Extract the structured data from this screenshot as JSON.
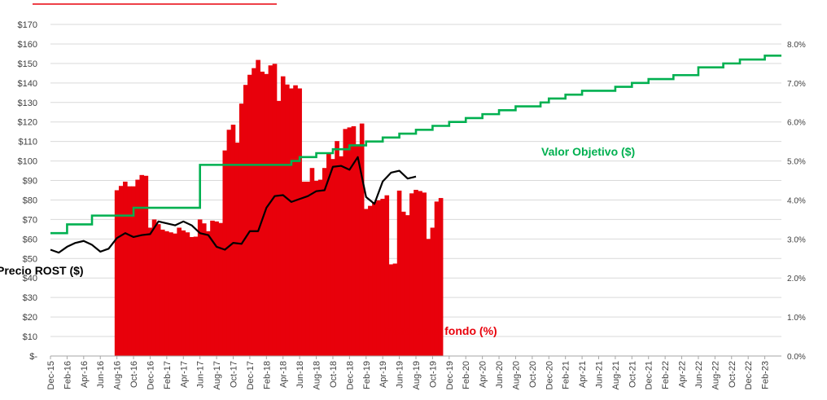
{
  "chart_data": {
    "type": "combo",
    "left_axis": {
      "ticks": [
        "$-",
        "$10",
        "$20",
        "$30",
        "$40",
        "$50",
        "$60",
        "$70",
        "$80",
        "$90",
        "$100",
        "$110",
        "$120",
        "$130",
        "$140",
        "$150",
        "$160",
        "$170"
      ],
      "ylim": [
        0,
        170
      ]
    },
    "right_axis": {
      "ticks": [
        "0.0%",
        "1.0%",
        "2.0%",
        "3.0%",
        "4.0%",
        "5.0%",
        "6.0%",
        "7.0%",
        "8.0%"
      ],
      "ylim": [
        0,
        8.5
      ]
    },
    "x_tick_labels": [
      "Dec-15",
      "Feb-16",
      "Apr-16",
      "Jun-16",
      "Aug-16",
      "Oct-16",
      "Dec-16",
      "Feb-17",
      "Apr-17",
      "Jun-17",
      "Aug-17",
      "Oct-17",
      "Dec-17",
      "Feb-18",
      "Apr-18",
      "Jun-18",
      "Aug-18",
      "Oct-18",
      "Dec-18",
      "Feb-19",
      "Apr-19",
      "Jun-19",
      "Aug-19",
      "Oct-19",
      "Dec-19",
      "Feb-20",
      "Apr-20",
      "Jun-20",
      "Aug-20",
      "Oct-20",
      "Dec-20",
      "Feb-21",
      "Apr-21",
      "Jun-21",
      "Aug-21",
      "Oct-21",
      "Dec-21",
      "Feb-22",
      "Apr-22",
      "Jun-22",
      "Aug-22",
      "Oct-22",
      "Dec-22",
      "Feb-23"
    ],
    "grid": true,
    "series": [
      {
        "name": "Peso en el fondo (%)",
        "kind": "bar",
        "axis": "right",
        "color": "#e8000b",
        "start_month": 8,
        "values": [
          4.25,
          4.36,
          4.47,
          4.35,
          4.35,
          4.52,
          4.64,
          4.62,
          3.29,
          3.5,
          3.38,
          3.24,
          3.2,
          3.17,
          3.14,
          3.29,
          3.22,
          3.17,
          3.05,
          3.06,
          3.5,
          3.4,
          3.2,
          3.47,
          3.45,
          3.41,
          5.27,
          5.8,
          5.93,
          5.47,
          6.47,
          6.95,
          7.21,
          7.38,
          7.59,
          7.29,
          7.23,
          7.45,
          7.49,
          6.54,
          7.17,
          6.96,
          6.86,
          6.94,
          6.86,
          4.47,
          4.47,
          4.82,
          4.49,
          4.52,
          4.82,
          5.18,
          5.05,
          5.51,
          5.12,
          5.82,
          5.86,
          5.89,
          5.43,
          5.96,
          3.77,
          3.85,
          3.95,
          3.99,
          4.03,
          4.12,
          2.35,
          2.37,
          4.24,
          3.7,
          3.61,
          4.17,
          4.26,
          4.23,
          4.19,
          3.0,
          3.29,
          3.96,
          4.05
        ]
      },
      {
        "name": "Precio ROST ($)",
        "kind": "line",
        "axis": "left",
        "color": "#000000",
        "values": [
          54.5,
          53,
          56,
          58,
          59,
          57,
          53.5,
          55,
          60.5,
          63,
          61,
          62,
          62.5,
          69,
          68,
          67,
          69,
          67,
          63,
          62,
          56,
          54.5,
          58,
          57.5,
          64,
          64,
          76,
          82,
          82.5,
          79,
          80.5,
          82,
          84.5,
          85,
          97,
          97.5,
          95.5,
          102,
          81.5,
          78,
          89.5,
          94,
          95,
          91,
          92
        ]
      },
      {
        "name": "Valor Objetivo ($)",
        "kind": "step",
        "axis": "left",
        "color": "#00b050",
        "values": [
          63,
          63,
          67.5,
          67.5,
          67.5,
          72,
          72,
          72,
          72,
          72,
          76,
          76,
          76,
          76,
          76,
          76,
          76,
          76,
          98,
          98,
          98,
          98,
          98,
          98,
          98,
          98,
          98,
          98,
          98,
          100,
          102,
          102,
          104,
          104,
          106,
          106,
          108,
          108,
          110,
          110,
          112,
          112,
          114,
          114,
          116,
          116,
          118,
          118,
          120,
          120,
          122,
          122,
          124,
          124,
          126,
          126,
          128,
          128,
          128,
          130,
          132,
          132,
          134,
          134,
          136,
          136,
          136,
          136,
          138,
          138,
          140,
          140,
          142,
          142,
          142,
          144,
          144,
          144,
          148,
          148,
          148,
          150,
          150,
          152,
          152,
          152,
          154,
          154
        ]
      }
    ],
    "annotations": [
      "Precio ROST ($)",
      "Valor Objetivo  ($)",
      "Peso en el fondo (%)"
    ]
  }
}
